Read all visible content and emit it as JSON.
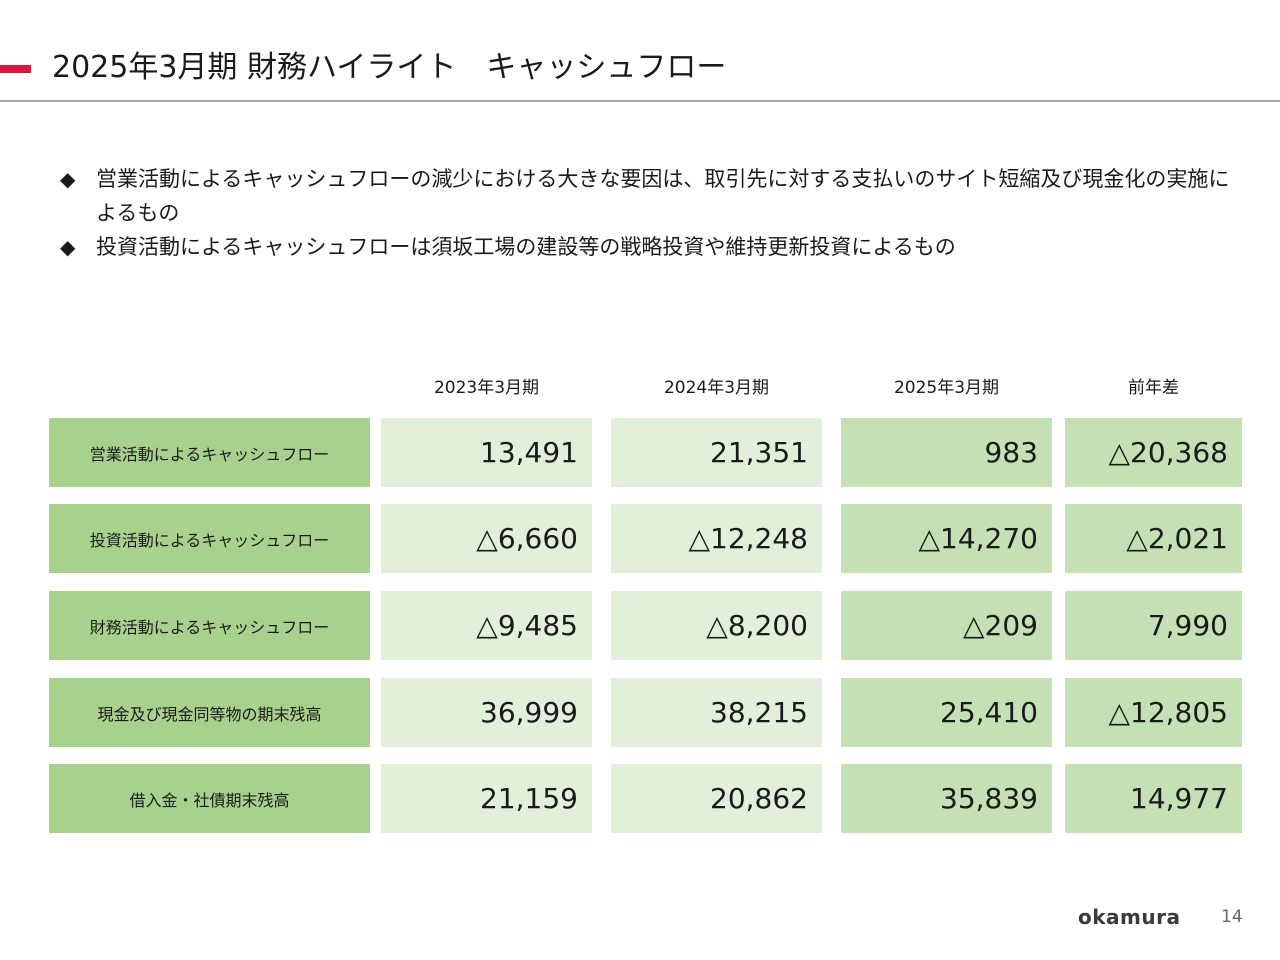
{
  "header": {
    "title": "2025年3月期 財務ハイライト　キャッシュフロー"
  },
  "bullets": [
    {
      "text": "営業活動によるキャッシュフローの減少における大きな要因は、取引先に対する支払いのサイト短縮及び現金化の実施によるもの"
    },
    {
      "text": "投資活動によるキャッシュフローは須坂工場の建設等の戦略投資や維持更新投資によるもの"
    }
  ],
  "bullet_symbol": "◆",
  "table": {
    "columns": [
      "2023年3月期",
      "2024年3月期",
      "2025年3月期",
      "前年差"
    ],
    "rows": [
      {
        "label": "営業活動によるキャッシュフロー",
        "values": [
          "13,491",
          "21,351",
          "983",
          "△20,368"
        ]
      },
      {
        "label": "投資活動によるキャッシュフロー",
        "values": [
          "△6,660",
          "△12,248",
          "△14,270",
          "△2,021"
        ]
      },
      {
        "label": "財務活動によるキャッシュフロー",
        "values": [
          "△9,485",
          "△8,200",
          "△209",
          "7,990"
        ]
      },
      {
        "label": "現金及び現金同等物の期末残高",
        "values": [
          "36,999",
          "38,215",
          "25,410",
          "△12,805"
        ]
      },
      {
        "label": "借入金・社債期末残高",
        "values": [
          "21,159",
          "20,862",
          "35,839",
          "14,977"
        ]
      }
    ]
  },
  "footer": {
    "logo": "okamura",
    "page_number": "14"
  },
  "colors": {
    "accent": "#d7193a",
    "label_bg": "#a9d18e",
    "cell_light": "#e2efda",
    "cell_mid": "#c5e0b4"
  }
}
